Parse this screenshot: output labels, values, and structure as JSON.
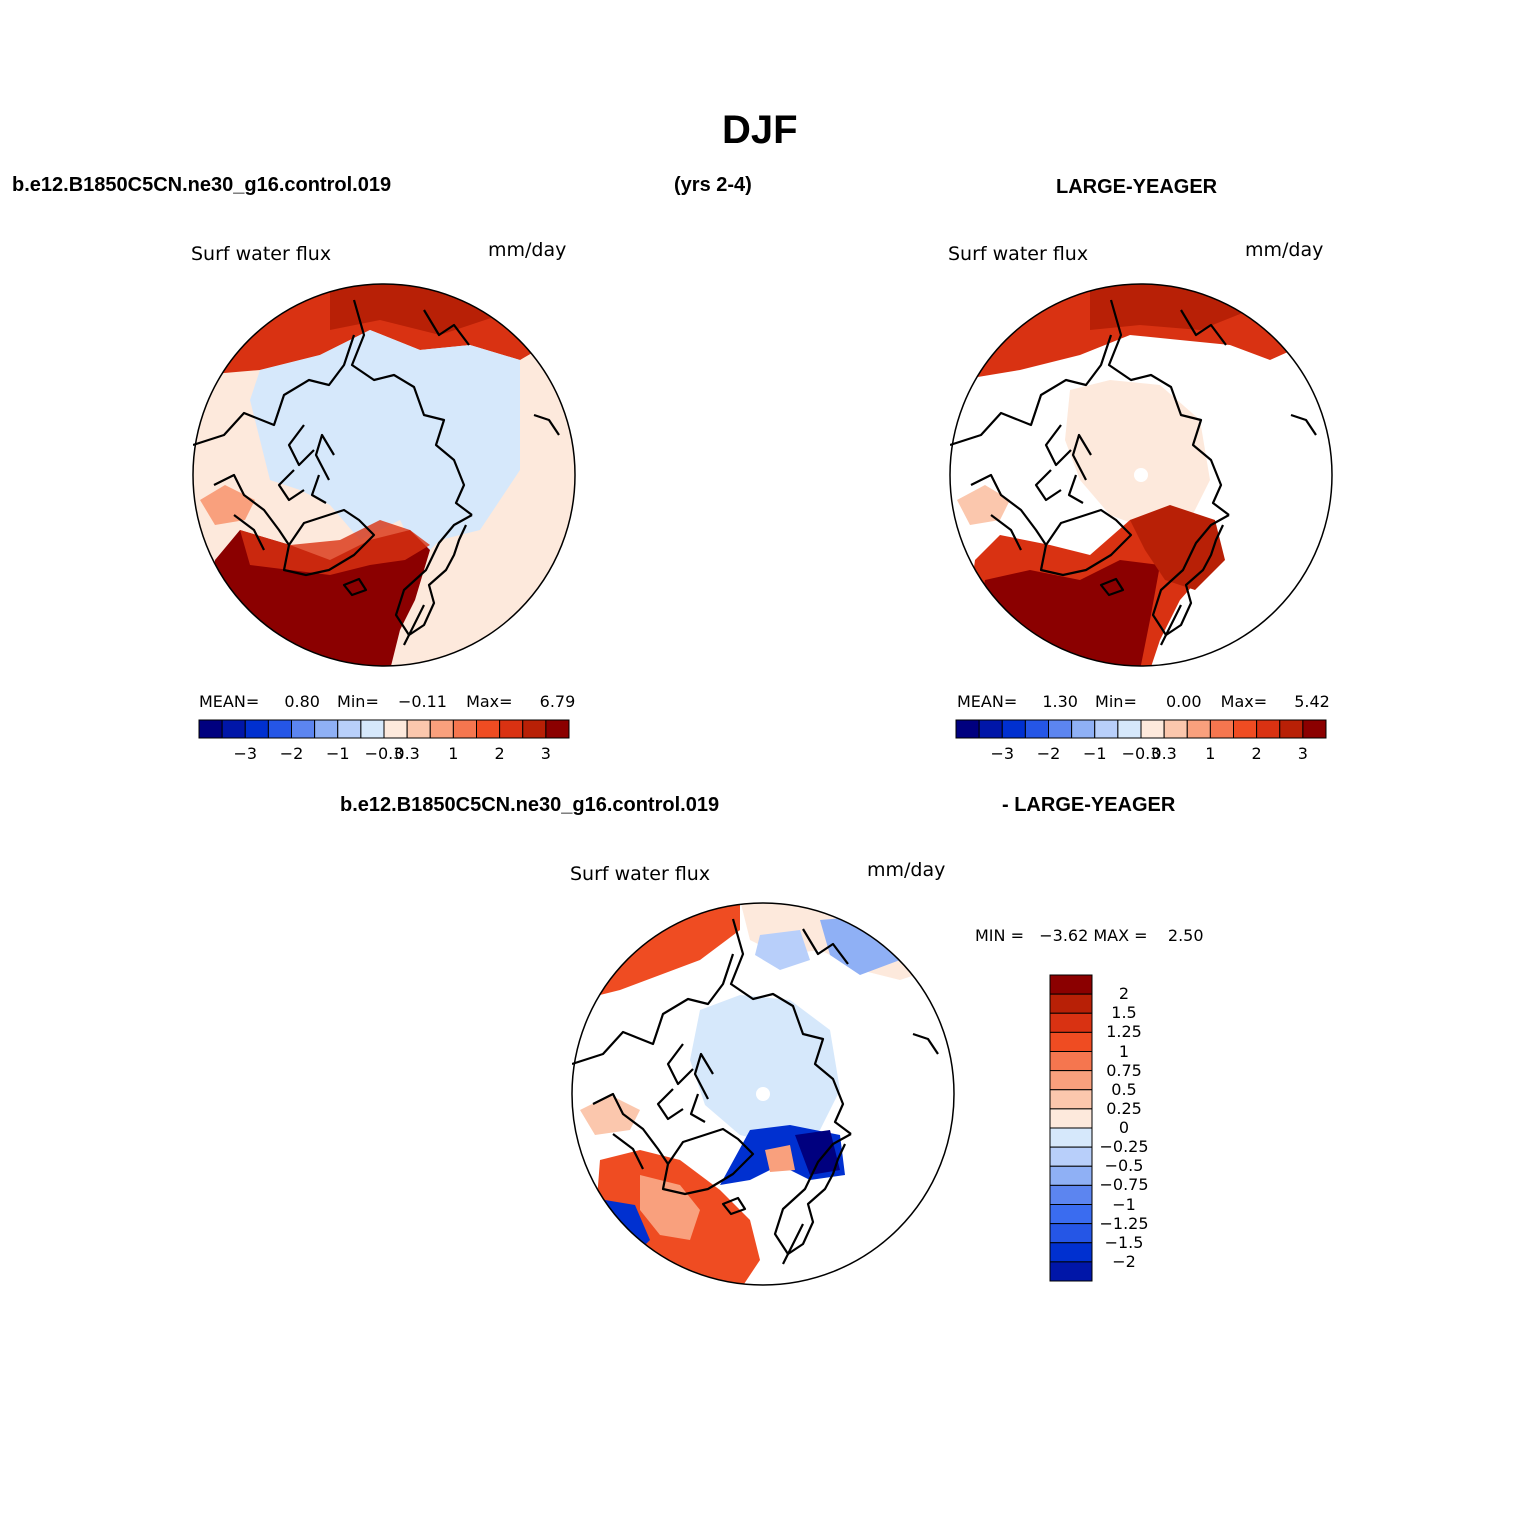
{
  "title": "DJF",
  "header": {
    "case": "b.e12.B1850C5CN.ne30_g16.control.019",
    "years": "(yrs 2-4)",
    "obs": "LARGE-YEAGER"
  },
  "diff_header": {
    "case": "b.e12.B1850C5CN.ne30_g16.control.019",
    "minus_obs": "- LARGE-YEAGER"
  },
  "colors": {
    "land": "#ffffff",
    "ocean_line": "#000000"
  },
  "panels": [
    {
      "variable": "Surf water flux",
      "units": "mm/day",
      "stats": {
        "mean_label": "MEAN=",
        "mean": "0.80",
        "min_label": "Min=",
        "min": "−0.11",
        "max_label": "Max=",
        "max": "6.79"
      }
    },
    {
      "variable": "Surf water flux",
      "units": "mm/day",
      "stats": {
        "mean_label": "MEAN=",
        "mean": "1.30",
        "min_label": "Min=",
        "min": "0.00",
        "max_label": "Max=",
        "max": "5.42"
      }
    }
  ],
  "diff_panel": {
    "variable": "Surf water flux",
    "units": "mm/day",
    "minmax_text": "MIN =   −3.62 MAX =    2.50"
  },
  "colorbar_h": {
    "colors": [
      "#00007f",
      "#0016a8",
      "#0030d0",
      "#2556e6",
      "#5c85f0",
      "#8fb0f5",
      "#b8cffa",
      "#d6e8fb",
      "#fde9dc",
      "#fbc7ad",
      "#f9a07d",
      "#f5764f",
      "#ef4c22",
      "#d93212",
      "#b82006",
      "#8b0000"
    ],
    "tick_labels": [
      "−3",
      "−2",
      "−1",
      "−0.3",
      "0.3",
      "1",
      "2",
      "3"
    ]
  },
  "colorbar_v": {
    "colors": [
      "#8b0000",
      "#b82006",
      "#d93212",
      "#ef4c22",
      "#f5764f",
      "#f9a07d",
      "#fbc7ad",
      "#fde9dc",
      "#d6e8fb",
      "#b8cffa",
      "#8fb0f5",
      "#5c85f0",
      "#3a6cf0",
      "#2556e6",
      "#0030d0",
      "#0016a8"
    ],
    "tick_labels": [
      "2",
      "1.5",
      "1.25",
      "1",
      "0.75",
      "0.5",
      "0.25",
      "0",
      "−0.25",
      "−0.5",
      "−0.75",
      "−1",
      "−1.25",
      "−1.5",
      "−2"
    ]
  }
}
